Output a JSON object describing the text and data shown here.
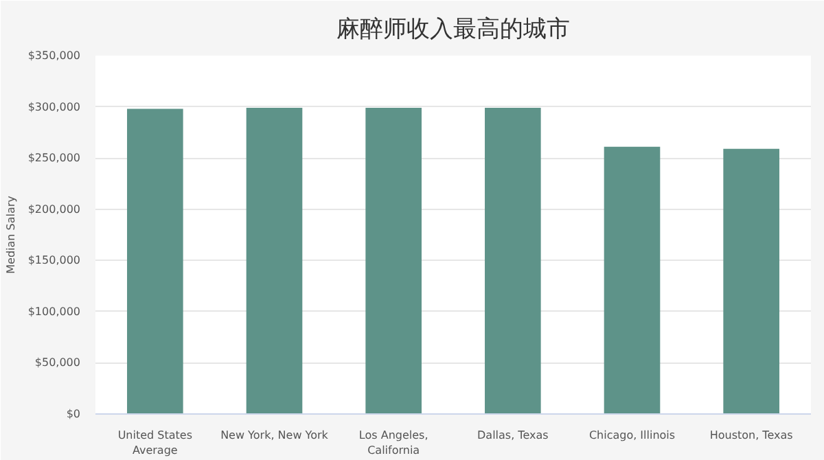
{
  "chart_data": {
    "type": "bar",
    "title": "麻醉师收入最高的城市",
    "ylabel": "Median Salary",
    "categories": [
      [
        "United States",
        "Average"
      ],
      [
        "New York, New York"
      ],
      [
        "Los Angeles,",
        "California"
      ],
      [
        "Dallas, Texas"
      ],
      [
        "Chicago, Illinois"
      ],
      [
        "Houston, Texas"
      ]
    ],
    "values": [
      298000,
      299000,
      299000,
      299000,
      261000,
      259000
    ],
    "color": "#5e9389",
    "ylim": [
      0,
      350000
    ],
    "yticks": [
      {
        "value": 0,
        "label": "$0"
      },
      {
        "value": 50000,
        "label": "$50,000"
      },
      {
        "value": 100000,
        "label": "$100,000"
      },
      {
        "value": 150000,
        "label": "$150,000"
      },
      {
        "value": 200000,
        "label": "$200,000"
      },
      {
        "value": 250000,
        "label": "$250,000"
      },
      {
        "value": 300000,
        "label": "$300,000"
      },
      {
        "value": 350000,
        "label": "$350,000"
      }
    ],
    "grid": "y"
  }
}
